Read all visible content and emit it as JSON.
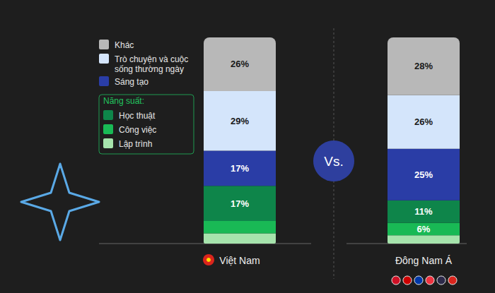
{
  "chart_data": {
    "type": "bar",
    "stacked": true,
    "categories": [
      "Việt Nam",
      "Đông Nam Á"
    ],
    "ylim": [
      0,
      100
    ],
    "tick_labels": false,
    "grid": false,
    "legend": "top-left",
    "data_labels": true,
    "legend_groups": [
      {
        "title": "Năng suất:",
        "members": [
          "Học thuật",
          "Công việc",
          "Lập trình"
        ]
      }
    ],
    "annotations": [
      "Vs."
    ],
    "series": [
      {
        "name": "Khác",
        "color": "#b8b8b8",
        "values": [
          26,
          28
        ],
        "value_labels": [
          "26%",
          "28%"
        ]
      },
      {
        "name": "Trò chuyện và cuộc sống thường ngày",
        "color": "#d4e5fb",
        "values": [
          29,
          26
        ],
        "value_labels": [
          "29%",
          "26%"
        ]
      },
      {
        "name": "Sáng tạo",
        "color": "#2a3da6",
        "values": [
          17,
          25
        ],
        "value_labels": [
          "17%",
          "25%"
        ]
      },
      {
        "name": "Học thuật",
        "color": "#0e854a",
        "values": [
          17,
          11
        ],
        "value_labels": [
          "17%",
          "11%"
        ]
      },
      {
        "name": "Công việc",
        "color": "#19b955",
        "values": [
          6,
          6
        ],
        "value_labels": [
          null,
          "6%"
        ]
      },
      {
        "name": "Lập trình",
        "color": "#a6e3ac",
        "values": [
          5,
          4
        ],
        "value_labels": [
          null,
          null
        ]
      }
    ]
  }
}
